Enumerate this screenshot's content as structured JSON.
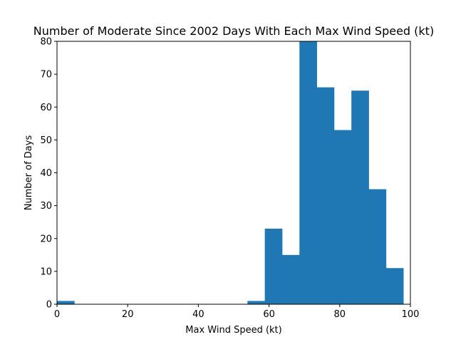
{
  "chart_data": {
    "type": "bar",
    "title": "Number of Moderate Since 2002 Days With Each Max Wind Speed (kt)",
    "xlabel": "Max Wind Speed (kt)",
    "ylabel": "Number of Days",
    "xlim": [
      0,
      100
    ],
    "ylim": [
      0,
      80
    ],
    "xticks": [
      "0",
      "20",
      "40",
      "60",
      "80",
      "100"
    ],
    "yticks": [
      "0",
      "10",
      "20",
      "30",
      "40",
      "50",
      "60",
      "70",
      "80"
    ],
    "bin_edges": [
      0,
      4.9,
      9.8,
      14.7,
      19.6,
      24.5,
      29.4,
      34.3,
      39.2,
      44.1,
      49.0,
      53.9,
      58.8,
      63.7,
      68.6,
      73.5,
      78.4,
      83.3,
      88.2,
      93.1,
      98.0
    ],
    "counts": [
      1,
      0,
      0,
      0,
      0,
      0,
      0,
      0,
      0,
      0,
      0,
      1,
      23,
      15,
      80,
      66,
      53,
      65,
      35,
      11
    ],
    "bar_color": "#1f77b4",
    "grid": false
  }
}
